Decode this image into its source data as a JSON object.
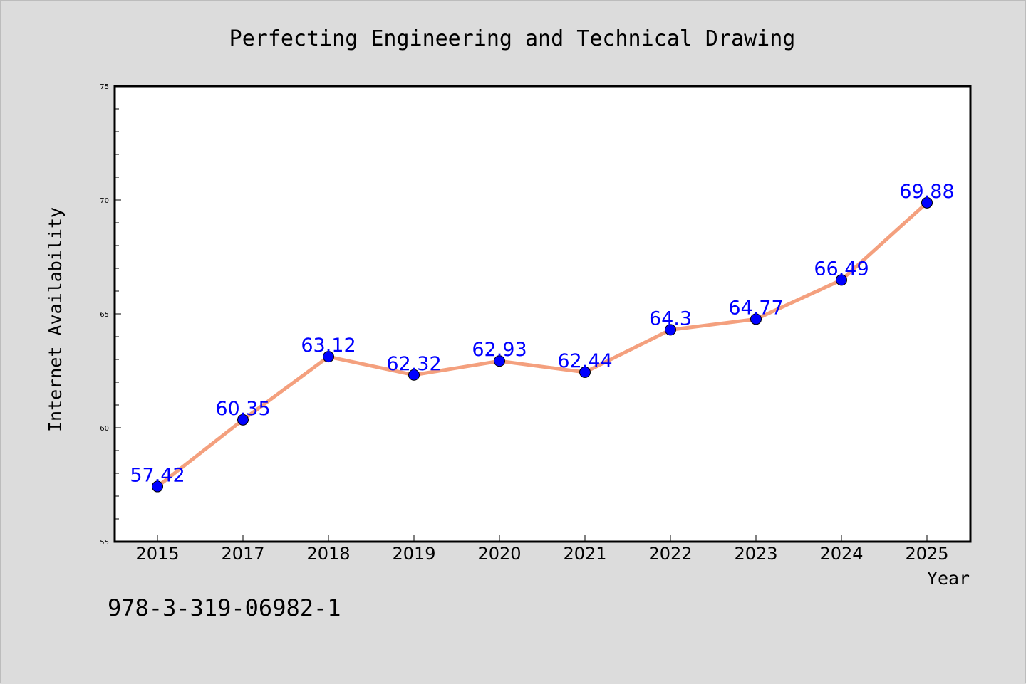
{
  "chart_data": {
    "type": "line",
    "title": "Perfecting Engineering and Technical Drawing",
    "xlabel": "Year",
    "ylabel": "Internet Availability",
    "categories": [
      "2015",
      "2017",
      "2018",
      "2019",
      "2020",
      "2021",
      "2022",
      "2023",
      "2024",
      "2025"
    ],
    "series": [
      {
        "values": [
          57.42,
          60.35,
          63.12,
          62.32,
          62.93,
          62.44,
          64.3,
          64.77,
          66.49,
          69.88
        ],
        "data_labels": [
          "57.42",
          "60.35",
          "63.12",
          "62.32",
          "62.93",
          "62.44",
          "64.3",
          "64.77",
          "66.49",
          "69.88"
        ],
        "line_color": "#f4a07e",
        "marker_color": "#0000ff",
        "label_color": "#0000ff"
      }
    ],
    "ylim": [
      55,
      75
    ],
    "yticks": [
      "55",
      "60",
      "65",
      "70",
      "75"
    ],
    "grid": false,
    "legend": "none"
  },
  "footer": {
    "isbn": "978-3-319-06982-1"
  },
  "colors": {
    "background": "#dcdcdc",
    "plot_background": "#ffffff",
    "axis": "#000000"
  }
}
